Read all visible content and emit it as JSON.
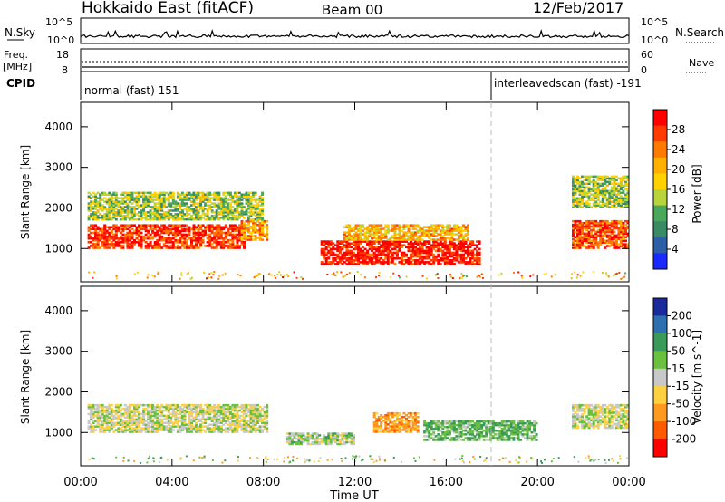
{
  "header": {
    "station": "Hokkaido East (fitACF)",
    "beam": "Beam 00",
    "date": "12/Feb/2017"
  },
  "top_panels": {
    "nsky_label": "N.Sky",
    "nsky_ticks": [
      "10^5",
      "10^0"
    ],
    "nsearch_ticks": [
      "10^5",
      "10^0"
    ],
    "nsearch_label": "N.Search",
    "freq_label_line1": "Freq.",
    "freq_label_line2": "[MHz]",
    "freq_ticks": [
      "18",
      "8"
    ],
    "nave_ticks": [
      "60",
      "0"
    ],
    "nave_label": "Nave",
    "cpid_label": "CPID",
    "cpid_segments": [
      {
        "text": "normal (fast) 151",
        "start_hour": 0.0
      },
      {
        "text": "interleavedscan (fast) -191",
        "start_hour": 18.0
      }
    ]
  },
  "axes": {
    "x_label": "Time UT",
    "x_ticks": [
      "00:00",
      "04:00",
      "08:00",
      "12:00",
      "16:00",
      "20:00",
      "00:00"
    ],
    "x_tick_hours": [
      0,
      4,
      8,
      12,
      16,
      20,
      24
    ],
    "y_label": "Slant Range [km]",
    "y_ticks": [
      "4000",
      "3000",
      "2000",
      "1000"
    ],
    "y_tick_values": [
      4000,
      3000,
      2000,
      1000
    ]
  },
  "power_colorbar": {
    "label": "Power [dB]",
    "ticks": [
      "28",
      "24",
      "20",
      "16",
      "12",
      "8",
      "4"
    ],
    "colors": [
      "#ff0000",
      "#ff3b00",
      "#ff7a00",
      "#ffb000",
      "#ffd200",
      "#b8d43a",
      "#4ba85a",
      "#3a8a66",
      "#2d5ea8",
      "#1a2aff"
    ]
  },
  "velocity_colorbar": {
    "label": "Velocity [m s^-1]",
    "ticks": [
      "200",
      "100",
      "50",
      "15",
      "-15",
      "-50",
      "-100",
      "-200"
    ],
    "colors": [
      "#1a2a9a",
      "#2e6fb0",
      "#3a9a5a",
      "#6cc040",
      "#c8c8c8",
      "#ffd040",
      "#ff9a20",
      "#ff5a00",
      "#ff0000"
    ]
  },
  "chart_data": {
    "type": "heatmap",
    "title": "Hokkaido East (fitACF)",
    "xlabel": "Time UT",
    "ylabel": "Slant Range [km]",
    "xlim_hours": [
      0,
      24
    ],
    "ylim_km": [
      180,
      4600
    ],
    "panels": [
      {
        "name": "Power [dB]",
        "regions": [
          {
            "hours": [
              0.3,
              7.2
            ],
            "range_km": [
              1000,
              1600
            ],
            "value_db": 26
          },
          {
            "hours": [
              7.0,
              8.2
            ],
            "range_km": [
              1200,
              1700
            ],
            "value_db": 20
          },
          {
            "hours": [
              0.3,
              8.0
            ],
            "range_km": [
              1700,
              2400
            ],
            "value_db": 12
          },
          {
            "hours": [
              10.5,
              17.5
            ],
            "range_km": [
              600,
              1200
            ],
            "value_db": 28
          },
          {
            "hours": [
              11.5,
              17.0
            ],
            "range_km": [
              1200,
              1600
            ],
            "value_db": 18
          },
          {
            "hours": [
              21.5,
              24.0
            ],
            "range_km": [
              1000,
              1700
            ],
            "value_db": 24
          },
          {
            "hours": [
              21.5,
              24.0
            ],
            "range_km": [
              2000,
              2800
            ],
            "value_db": 12
          }
        ]
      },
      {
        "name": "Velocity [m s^-1]",
        "regions": [
          {
            "hours": [
              0.3,
              8.2
            ],
            "range_km": [
              1000,
              1700
            ],
            "value_ms": 0
          },
          {
            "hours": [
              9.0,
              12.0
            ],
            "range_km": [
              700,
              1000
            ],
            "value_ms": 20
          },
          {
            "hours": [
              12.8,
              14.8
            ],
            "range_km": [
              1000,
              1500
            ],
            "value_ms": -70
          },
          {
            "hours": [
              15.0,
              20.0
            ],
            "range_km": [
              800,
              1300
            ],
            "value_ms": 40
          },
          {
            "hours": [
              21.5,
              24.0
            ],
            "range_km": [
              1100,
              1700
            ],
            "value_ms": 0
          }
        ]
      }
    ]
  }
}
